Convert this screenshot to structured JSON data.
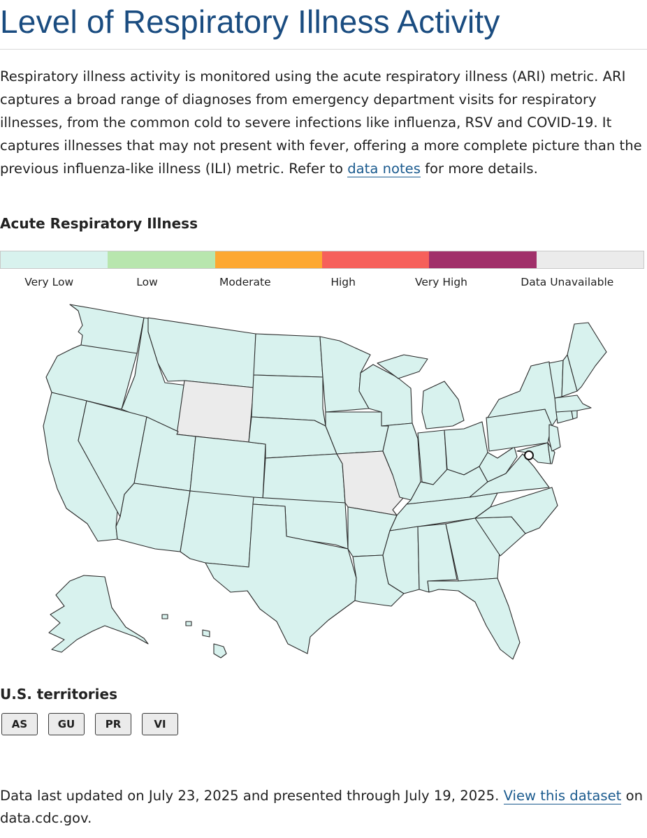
{
  "page": {
    "title": "Level of Respiratory Illness Activity"
  },
  "intro": {
    "text_before_link": "Respiratory illness activity is monitored using the acute respiratory illness (ARI) metric. ARI captures a broad range of diagnoses from emergency department visits for respiratory illnesses, from the common cold to severe infections like influenza, RSV and COVID-19. It captures illnesses that may not present with fever, offering a more complete picture than the previous influenza-like illness (ILI) metric. Refer to ",
    "link_text": "data notes",
    "text_after_link": " for more details."
  },
  "legend": {
    "title": "Acute Respiratory Illness",
    "items": [
      {
        "label": "Very Low",
        "color": "#d8f2ee"
      },
      {
        "label": "Low",
        "color": "#b8e6ae"
      },
      {
        "label": "Moderate",
        "color": "#fda832"
      },
      {
        "label": "High",
        "color": "#f6605b"
      },
      {
        "label": "Very High",
        "color": "#a1306a"
      },
      {
        "label": "Data Unavailable",
        "color": "#ebebeb"
      }
    ]
  },
  "map": {
    "default_level": "Very Low",
    "data_unavailable_states": [
      "Wyoming",
      "Missouri"
    ]
  },
  "territories": {
    "title": "U.S. territories",
    "buttons": [
      "AS",
      "GU",
      "PR",
      "VI"
    ]
  },
  "footer": {
    "text_before_link": "Data last updated on July 23, 2025 and presented through July 19, 2025. ",
    "link_text": "View this dataset",
    "text_after_link": " on data.cdc.gov."
  }
}
